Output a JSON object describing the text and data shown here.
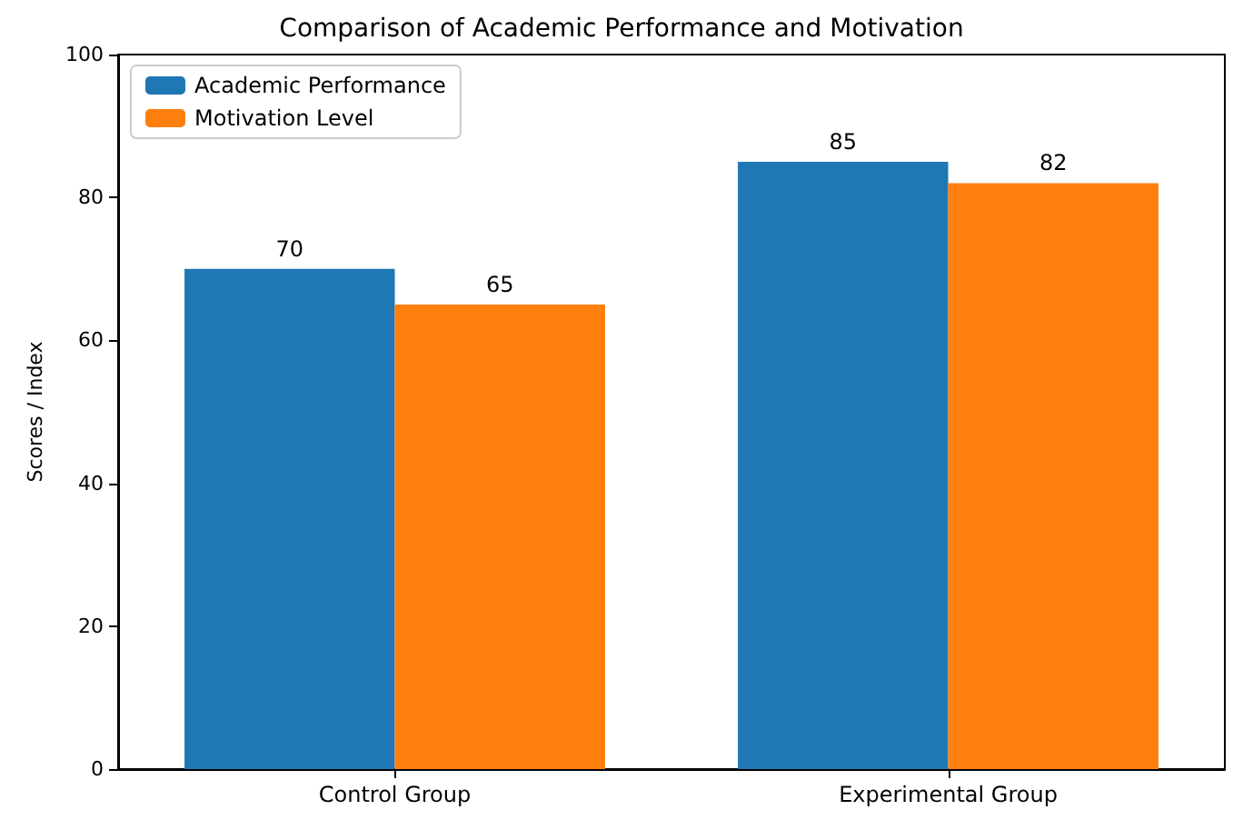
{
  "chart_data": {
    "type": "bar",
    "title": "Comparison of Academic Performance and Motivation",
    "ylabel": "Scores / Index",
    "categories": [
      "Control Group",
      "Experimental Group"
    ],
    "series": [
      {
        "name": "Academic Performance",
        "color": "#1f77b4",
        "values": [
          70,
          85
        ]
      },
      {
        "name": "Motivation Level",
        "color": "#ff7f0e",
        "values": [
          65,
          82
        ]
      }
    ],
    "ylim": [
      0,
      100
    ],
    "yticks": [
      0,
      20,
      40,
      60,
      80,
      100
    ],
    "grid": false,
    "legend": "top left",
    "data_labels": true
  }
}
